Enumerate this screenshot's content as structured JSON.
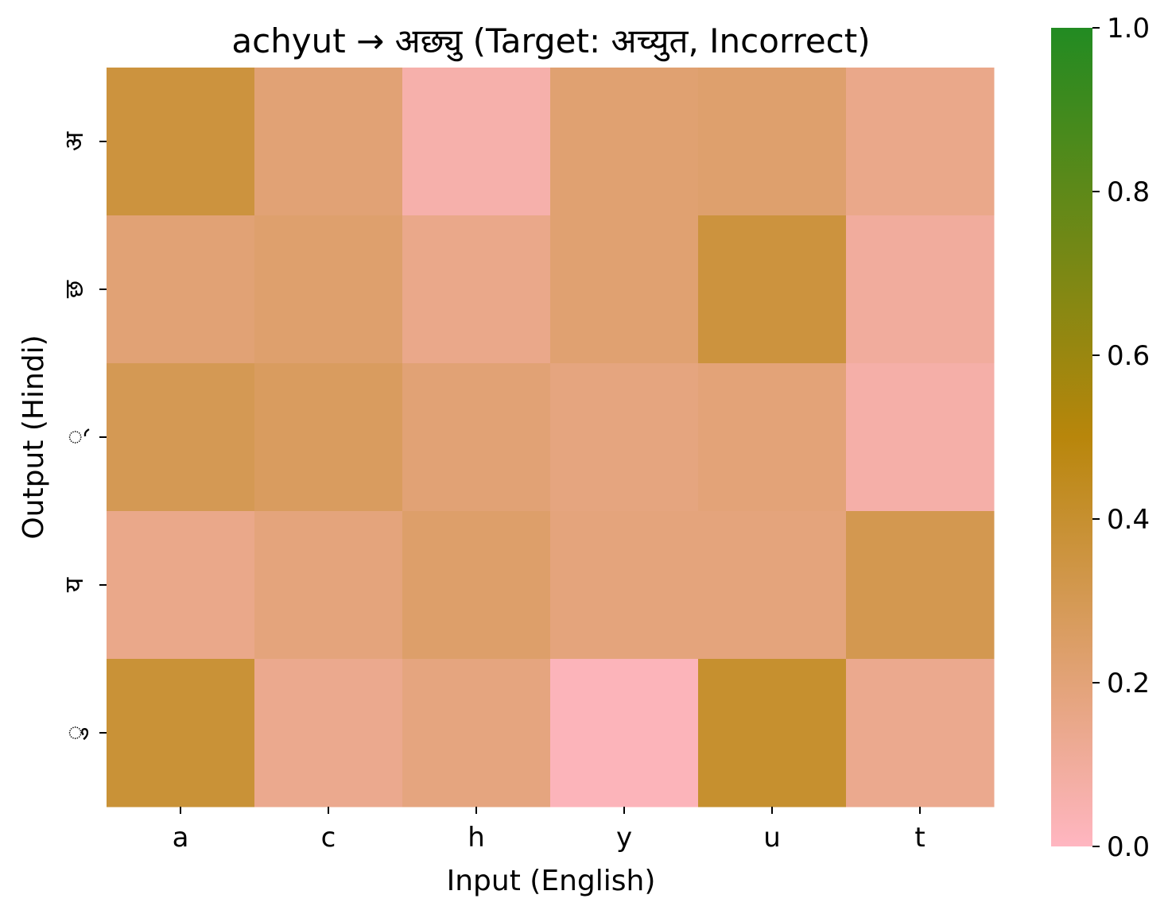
{
  "chart_data": {
    "type": "heatmap",
    "title": "achyut → अछ्यु (Target: अच्युत, Incorrect)",
    "xlabel": "Input (English)",
    "ylabel": "Output (Hindi)",
    "x_categories": [
      "a",
      "c",
      "h",
      "y",
      "u",
      "t"
    ],
    "y_categories": [
      "अ",
      "छ",
      "्",
      "य",
      "ु"
    ],
    "values": [
      [
        0.36,
        0.21,
        0.06,
        0.22,
        0.23,
        0.15
      ],
      [
        0.21,
        0.23,
        0.15,
        0.22,
        0.36,
        0.1
      ],
      [
        0.3,
        0.27,
        0.21,
        0.18,
        0.2,
        0.07
      ],
      [
        0.15,
        0.19,
        0.24,
        0.19,
        0.19,
        0.31
      ],
      [
        0.38,
        0.14,
        0.18,
        0.02,
        0.4,
        0.14
      ]
    ],
    "colorbar": {
      "range": [
        0.0,
        1.0
      ],
      "ticks": [
        "0.0",
        "0.2",
        "0.4",
        "0.6",
        "0.8",
        "1.0"
      ],
      "colors": [
        "#ffb6c1",
        "#b8860b",
        "#228b22"
      ]
    },
    "grid": false
  }
}
